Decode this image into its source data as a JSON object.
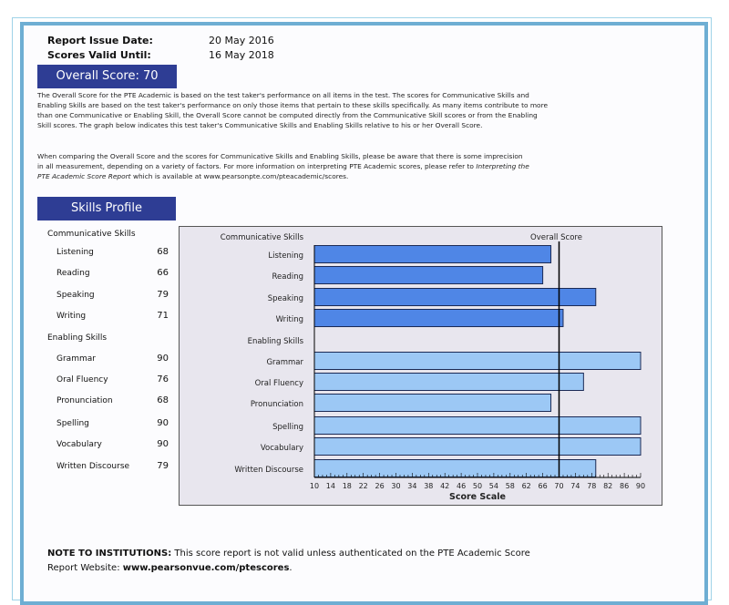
{
  "header": {
    "issue_label": "Report Issue Date:",
    "issue_value": "20 May 2016",
    "valid_label": "Scores Valid Until:",
    "valid_value": "16 May 2018"
  },
  "overall": {
    "label": "Overall Score: 70",
    "value": 70
  },
  "paragraphs": [
    "The Overall Score for the PTE Academic is based on the test taker's performance on all items in the test.  The scores for Communicative Skills and Enabling Skills are based on the test taker's performance on only those items that pertain to these skills specifically.  As many items contribute to more than one Communicative or Enabling Skill, the Overall Score cannot be computed directly from the Communicative Skill scores or from the Enabling Skill scores.  The graph below indicates this test taker's Communicative Skills and Enabling Skills relative to his or her Overall Score.",
    "When comparing the Overall Score and the scores for Communicative Skills and Enabling Skills, please be aware that there is some imprecision in all measurement, depending on a variety of factors.  For more information on interpreting PTE Academic scores, please refer to ",
    "Interpreting the PTE Academic Score Report",
    " which is available at www.pearsonpte.com/pteacademic/scores."
  ],
  "skills_profile": {
    "title": "Skills Profile",
    "communicative_heading": "Communicative Skills",
    "enabling_heading": "Enabling Skills"
  },
  "chart_data": {
    "type": "bar",
    "orientation": "horizontal",
    "groups": [
      {
        "name": "Communicative Skills",
        "color": "#4f86e6",
        "categories": [
          "Listening",
          "Reading",
          "Speaking",
          "Writing"
        ],
        "values": [
          68,
          66,
          79,
          71
        ]
      },
      {
        "name": "Enabling Skills",
        "color": "#9cc8f5",
        "categories": [
          "Grammar",
          "Oral Fluency",
          "Pronunciation",
          "Spelling",
          "Vocabulary",
          "Written Discourse"
        ],
        "values": [
          90,
          76,
          68,
          90,
          90,
          79
        ]
      }
    ],
    "reference_line": {
      "label": "Overall Score",
      "value": 70
    },
    "xlabel": "Score Scale",
    "xlim": [
      10,
      90
    ],
    "xticks": [
      10,
      14,
      18,
      22,
      26,
      30,
      34,
      38,
      42,
      46,
      50,
      54,
      58,
      62,
      66,
      70,
      74,
      78,
      82,
      86,
      90
    ]
  },
  "note": {
    "bold": "NOTE TO INSTITUTIONS:",
    "text": " This score report is not valid unless authenticated on the PTE Academic Score",
    "line2": "Report Website: ",
    "url": "www.pearsonvue.com/ptescores",
    "end": "."
  }
}
